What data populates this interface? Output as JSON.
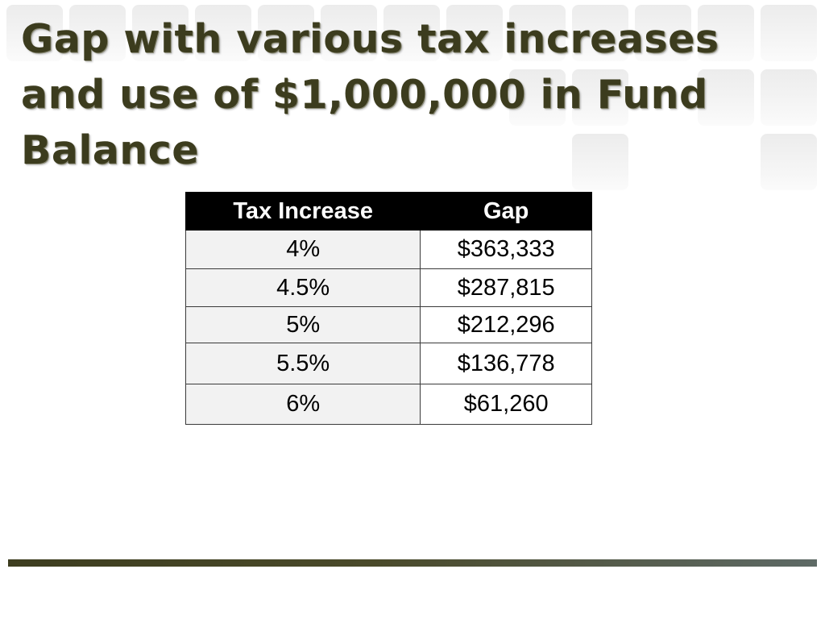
{
  "slide": {
    "title": "Gap with various tax increases and use of $1,000,000 in Fund Balance"
  },
  "table": {
    "headers": [
      "Tax Increase",
      "Gap"
    ],
    "rows": [
      {
        "tax_increase": "4%",
        "gap": "$363,333"
      },
      {
        "tax_increase": "4.5%",
        "gap": "$287,815"
      },
      {
        "tax_increase": "5%",
        "gap": "$212,296"
      },
      {
        "tax_increase": "5.5%",
        "gap": "$136,778"
      },
      {
        "tax_increase": "6%",
        "gap": "$61,260"
      }
    ]
  },
  "colors": {
    "title_text": "#3c3c1e",
    "header_bg": "#000000",
    "header_text": "#ffffff",
    "footer_bar": "#3d3d1f"
  }
}
